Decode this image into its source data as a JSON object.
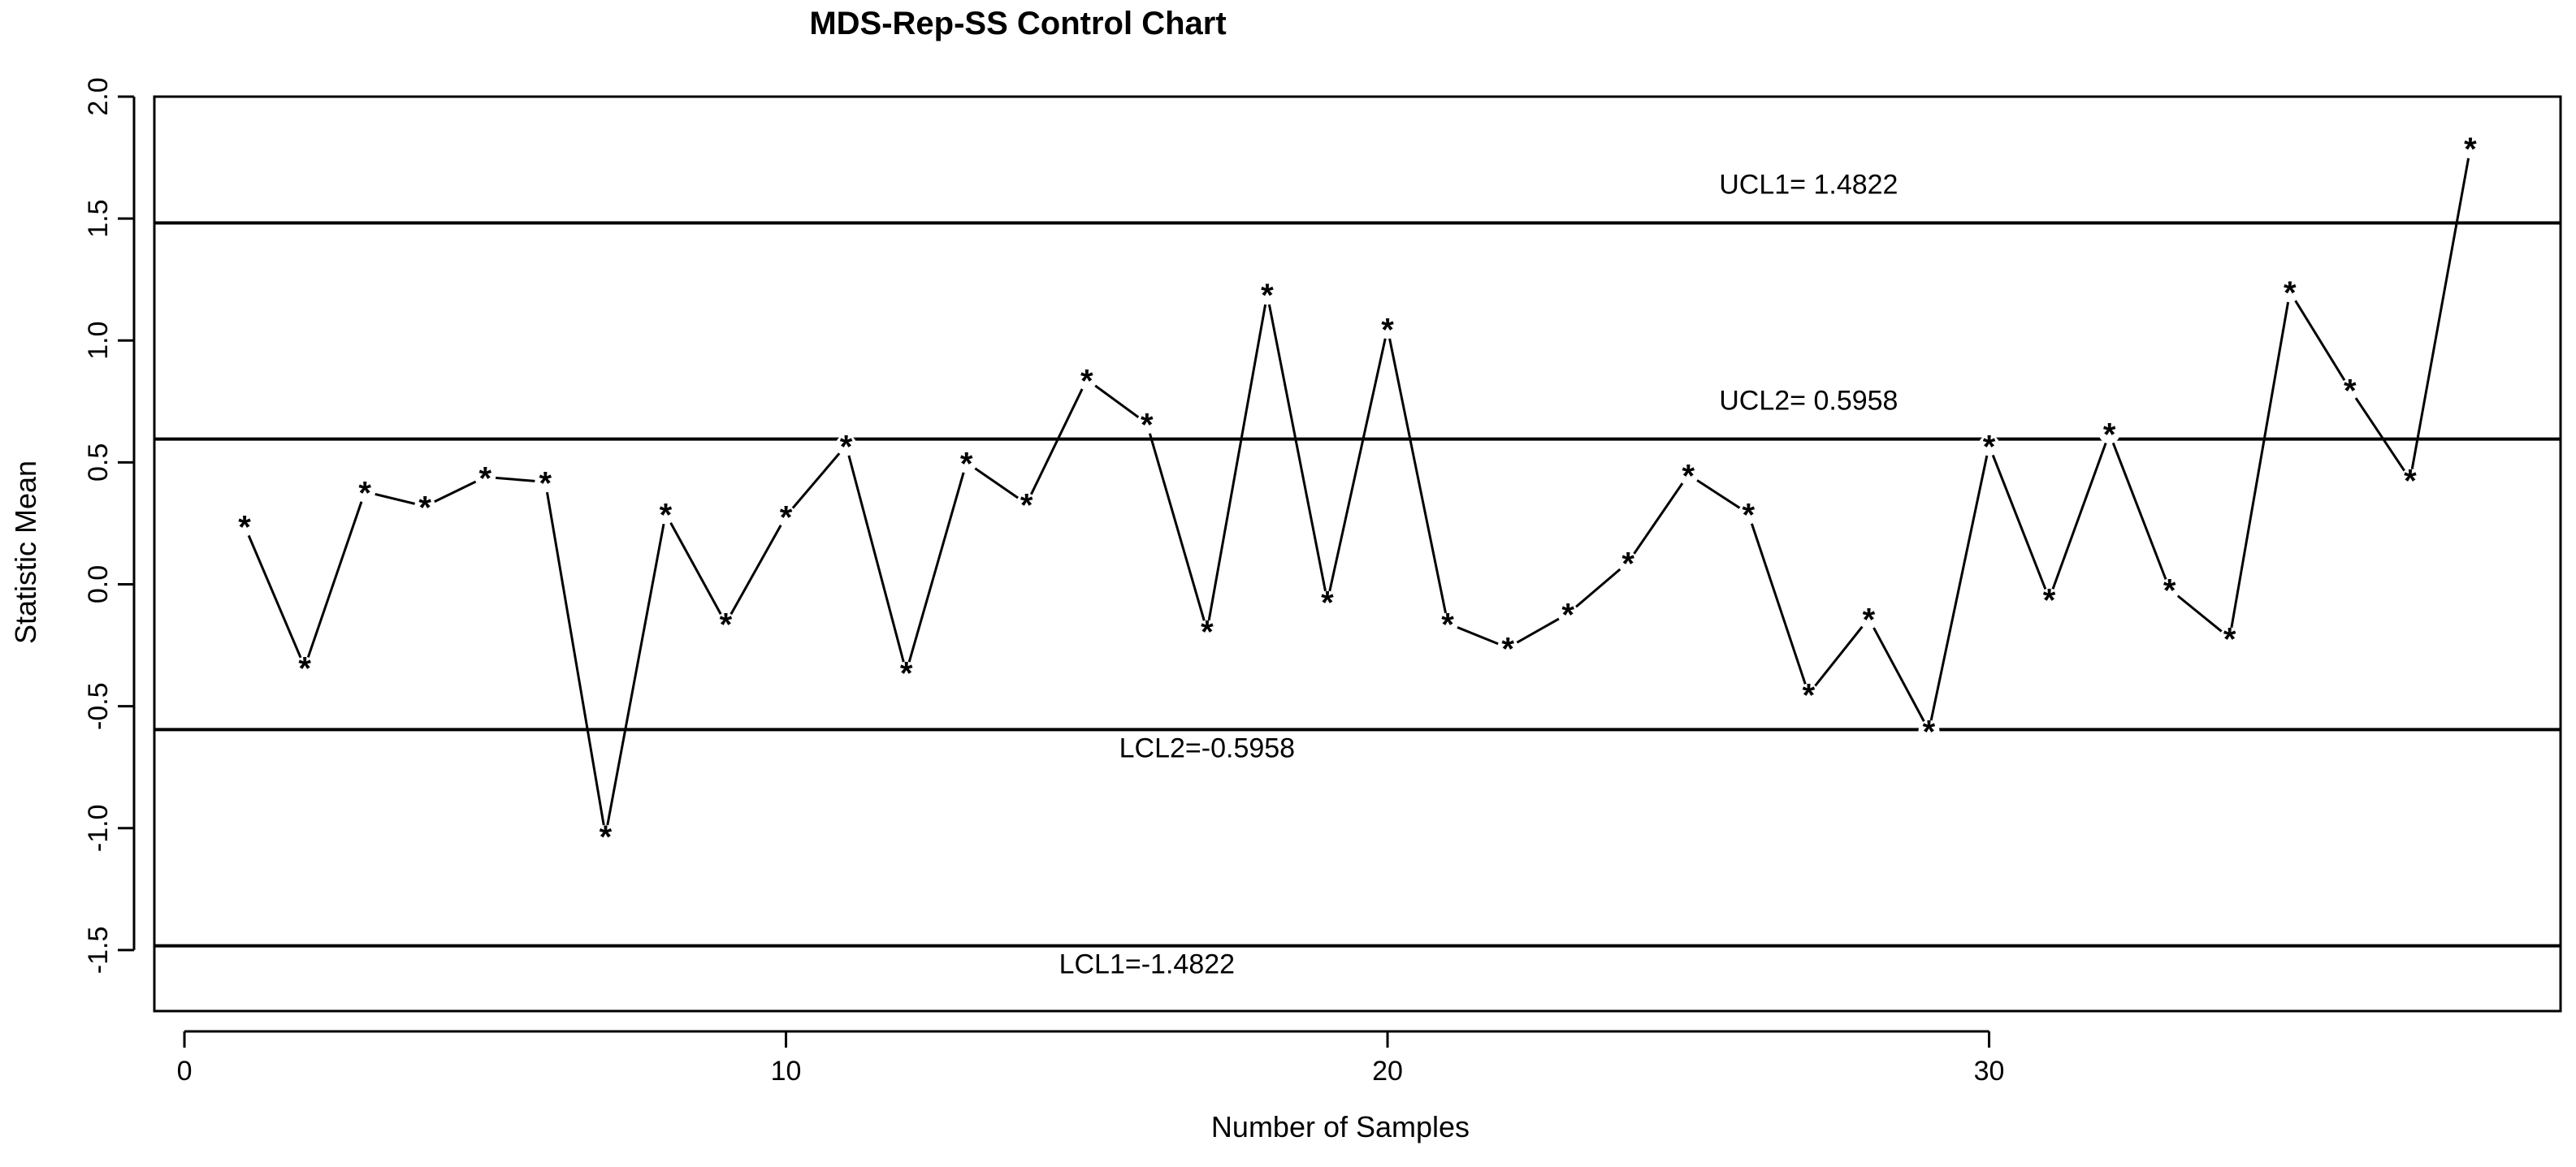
{
  "chart_data": {
    "type": "line",
    "title": "MDS-Rep-SS Control Chart",
    "xlabel": "Number of Samples",
    "ylabel": "Statistic Mean",
    "xlim": [
      -0.5,
      39.5
    ],
    "ylim": [
      -1.75,
      2.0
    ],
    "x_ticks": [
      0,
      10,
      20,
      30
    ],
    "y_ticks": [
      -1.5,
      -1.0,
      -0.5,
      0.0,
      0.5,
      1.0,
      1.5,
      2.0
    ],
    "y_tick_labels": [
      "-1.5",
      "-1.0",
      "-0.5",
      "0.0",
      "0.5",
      "1.0",
      "1.5",
      "2.0"
    ],
    "marker": "*",
    "series": [
      {
        "name": "Statistic Mean",
        "x": [
          1,
          2,
          3,
          4,
          5,
          6,
          7,
          8,
          9,
          10,
          11,
          12,
          13,
          14,
          15,
          16,
          17,
          18,
          19,
          20,
          21,
          22,
          23,
          24,
          25,
          26,
          27,
          28,
          29,
          30,
          31,
          32,
          33,
          34,
          35,
          36,
          37,
          38
        ],
        "values": [
          0.24,
          -0.34,
          0.38,
          0.32,
          0.44,
          0.42,
          -1.03,
          0.29,
          -0.16,
          0.28,
          0.57,
          -0.36,
          0.5,
          0.33,
          0.84,
          0.66,
          -0.19,
          1.19,
          -0.07,
          1.05,
          -0.16,
          -0.26,
          -0.12,
          0.09,
          0.45,
          0.29,
          -0.45,
          -0.14,
          -0.6,
          0.57,
          -0.06,
          0.62,
          -0.02,
          -0.22,
          1.2,
          0.8,
          0.43,
          1.79
        ]
      }
    ],
    "control_limits": [
      {
        "name": "UCL1",
        "value": 1.4822,
        "label": "UCL1= 1.4822",
        "label_x": 27
      },
      {
        "name": "UCL2",
        "value": 0.5958,
        "label": "UCL2= 0.5958",
        "label_x": 27
      },
      {
        "name": "LCL2",
        "value": -0.5958,
        "label": "LCL2=-0.5958",
        "label_x": 17
      },
      {
        "name": "LCL1",
        "value": -1.4822,
        "label": "LCL1=-1.4822",
        "label_x": 16
      }
    ]
  }
}
